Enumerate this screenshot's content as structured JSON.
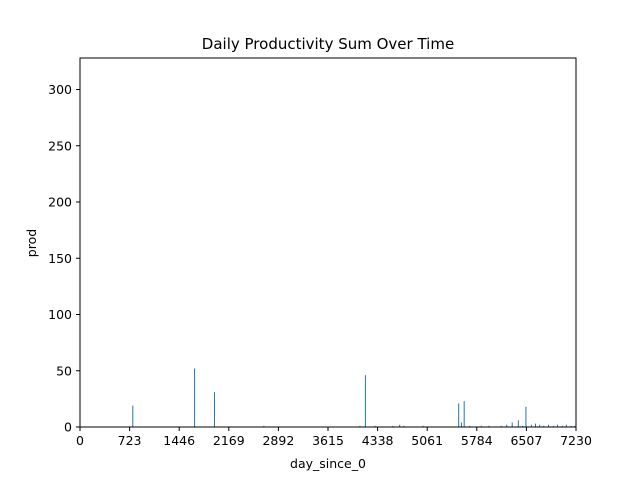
{
  "chart_data": {
    "type": "bar",
    "title": "Daily Productivity Sum Over Time",
    "xlabel": "day_since_0",
    "ylabel": "prod",
    "xlim": [
      0,
      7230
    ],
    "ylim": [
      0,
      328
    ],
    "xticks": [
      0,
      723,
      1446,
      2169,
      2892,
      3615,
      4338,
      5061,
      5784,
      6507,
      7230
    ],
    "yticks": [
      0,
      50,
      100,
      150,
      200,
      250,
      300
    ],
    "grid": false,
    "legend": "none",
    "bar_color": "#1f77b4",
    "bars": [
      {
        "x": 770,
        "y": 19
      },
      {
        "x": 1670,
        "y": 52
      },
      {
        "x": 1960,
        "y": 31
      },
      {
        "x": 2680,
        "y": 1
      },
      {
        "x": 4080,
        "y": 1
      },
      {
        "x": 4160,
        "y": 46
      },
      {
        "x": 4300,
        "y": 1
      },
      {
        "x": 4560,
        "y": 1
      },
      {
        "x": 4660,
        "y": 2
      },
      {
        "x": 4720,
        "y": 1
      },
      {
        "x": 5000,
        "y": 1
      },
      {
        "x": 5520,
        "y": 21
      },
      {
        "x": 5560,
        "y": 4
      },
      {
        "x": 5600,
        "y": 23
      },
      {
        "x": 5680,
        "y": 1
      },
      {
        "x": 5850,
        "y": 1
      },
      {
        "x": 5960,
        "y": 1
      },
      {
        "x": 6140,
        "y": 1
      },
      {
        "x": 6220,
        "y": 2
      },
      {
        "x": 6300,
        "y": 4
      },
      {
        "x": 6390,
        "y": 6
      },
      {
        "x": 6450,
        "y": 1
      },
      {
        "x": 6500,
        "y": 18
      },
      {
        "x": 6580,
        "y": 2
      },
      {
        "x": 6640,
        "y": 3
      },
      {
        "x": 6700,
        "y": 2
      },
      {
        "x": 6760,
        "y": 1
      },
      {
        "x": 6830,
        "y": 2
      },
      {
        "x": 6900,
        "y": 1
      },
      {
        "x": 6960,
        "y": 2
      },
      {
        "x": 7030,
        "y": 1
      },
      {
        "x": 7090,
        "y": 2
      },
      {
        "x": 7160,
        "y": 1
      },
      {
        "x": 7210,
        "y": 1
      }
    ]
  }
}
